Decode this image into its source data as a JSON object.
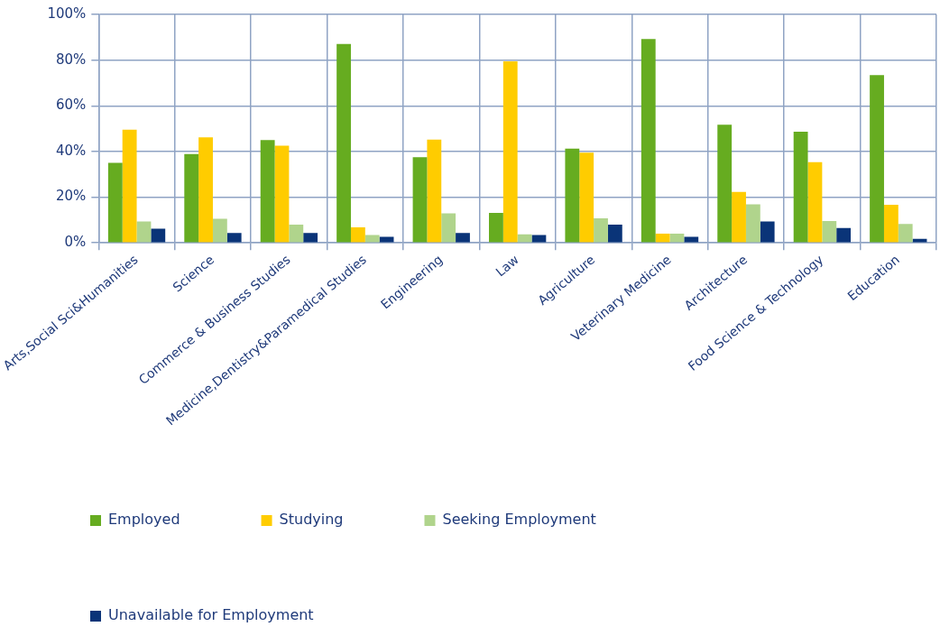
{
  "chart_data": {
    "type": "bar",
    "categories": [
      "Arts,Social Sci&Humanities",
      "Science",
      "Commerce & Business Studies",
      "Medicine,Dentistry&Paramedical Studies",
      "Engineering",
      "Law",
      "Agriculture",
      "Veterinary Medicine",
      "Architecture",
      "Food Science & Technology",
      "Education"
    ],
    "series": [
      {
        "name": "Employed",
        "color": "#66ac20",
        "values": [
          35,
          38.9,
          45,
          87.1,
          37.5,
          13.1,
          41.2,
          89.2,
          51.7,
          48.6,
          73.4
        ]
      },
      {
        "name": "Studying",
        "color": "#ffcc00",
        "values": [
          49.5,
          46.2,
          42.5,
          6.8,
          45.2,
          79.5,
          39.5,
          4,
          22.3,
          35.3,
          16.6
        ]
      },
      {
        "name": "Seeking Employment",
        "color": "#b0d48c",
        "values": [
          9.3,
          10.5,
          8,
          3.4,
          12.9,
          3.7,
          10.7,
          4,
          16.8,
          9.5,
          8.3
        ]
      },
      {
        "name": "Unavailable for Employment",
        "color": "#0a3478",
        "values": [
          6.2,
          4.3,
          4.3,
          2.6,
          4.3,
          3.4,
          8,
          2.6,
          9.3,
          6.5,
          1.7
        ]
      }
    ],
    "ylim": [
      0,
      100
    ],
    "yticks": [
      {
        "value": 0,
        "label": "0%"
      },
      {
        "value": 20,
        "label": "20%"
      },
      {
        "value": 40,
        "label": "40%"
      },
      {
        "value": 60,
        "label": "60%"
      },
      {
        "value": 80,
        "label": "80%"
      },
      {
        "value": 100,
        "label": "100%"
      }
    ],
    "grid": true,
    "legend": "bottom"
  }
}
